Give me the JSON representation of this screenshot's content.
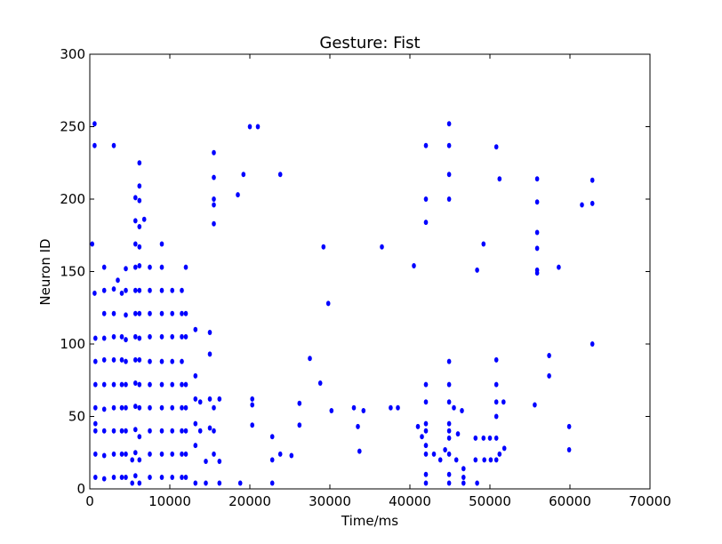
{
  "chart_data": {
    "type": "scatter",
    "title": "Gesture: Fist",
    "xlabel": "Time/ms",
    "ylabel": "Neuron ID",
    "xlim": [
      0,
      70000
    ],
    "ylim": [
      0,
      300
    ],
    "xticks": [
      0,
      10000,
      20000,
      30000,
      40000,
      50000,
      60000,
      70000
    ],
    "yticks": [
      0,
      50,
      100,
      150,
      200,
      250,
      300
    ],
    "xtick_labels": [
      "0",
      "10000",
      "20000",
      "30000",
      "40000",
      "50000",
      "60000",
      "70000"
    ],
    "ytick_labels": [
      "0",
      "50",
      "100",
      "150",
      "200",
      "250",
      "300"
    ],
    "grid": false,
    "marker_color": "#0000ff",
    "series": [
      {
        "points": [
          [
            600,
            252
          ],
          [
            600,
            237
          ],
          [
            300,
            169
          ],
          [
            600,
            135
          ],
          [
            700,
            104
          ],
          [
            700,
            88
          ],
          [
            700,
            72
          ],
          [
            700,
            56
          ],
          [
            700,
            45
          ],
          [
            700,
            40
          ],
          [
            700,
            24
          ],
          [
            700,
            8
          ],
          [
            1800,
            153
          ],
          [
            1800,
            137
          ],
          [
            1800,
            121
          ],
          [
            1800,
            104
          ],
          [
            1800,
            89
          ],
          [
            1800,
            72
          ],
          [
            1800,
            55
          ],
          [
            1800,
            40
          ],
          [
            1800,
            23
          ],
          [
            1800,
            7
          ],
          [
            3000,
            237
          ],
          [
            3000,
            138
          ],
          [
            3000,
            121
          ],
          [
            3000,
            105
          ],
          [
            3000,
            89
          ],
          [
            3000,
            72
          ],
          [
            3000,
            56
          ],
          [
            3000,
            40
          ],
          [
            3000,
            24
          ],
          [
            3000,
            8
          ],
          [
            3500,
            144
          ],
          [
            4000,
            135
          ],
          [
            4000,
            105
          ],
          [
            4000,
            89
          ],
          [
            4000,
            72
          ],
          [
            4000,
            56
          ],
          [
            4000,
            40
          ],
          [
            4000,
            24
          ],
          [
            4000,
            8
          ],
          [
            4500,
            152
          ],
          [
            4500,
            137
          ],
          [
            4500,
            120
          ],
          [
            4500,
            103
          ],
          [
            4500,
            88
          ],
          [
            4500,
            72
          ],
          [
            4500,
            56
          ],
          [
            4500,
            40
          ],
          [
            4500,
            24
          ],
          [
            4500,
            8
          ],
          [
            5300,
            20
          ],
          [
            5300,
            4
          ],
          [
            5700,
            201
          ],
          [
            5700,
            185
          ],
          [
            5700,
            169
          ],
          [
            5700,
            153
          ],
          [
            5700,
            137
          ],
          [
            5700,
            121
          ],
          [
            5700,
            105
          ],
          [
            5700,
            89
          ],
          [
            5700,
            73
          ],
          [
            5700,
            57
          ],
          [
            5700,
            41
          ],
          [
            5700,
            25
          ],
          [
            5700,
            9
          ],
          [
            6200,
            225
          ],
          [
            6200,
            209
          ],
          [
            6200,
            199
          ],
          [
            6200,
            181
          ],
          [
            6200,
            167
          ],
          [
            6200,
            154
          ],
          [
            6200,
            137
          ],
          [
            6200,
            121
          ],
          [
            6200,
            104
          ],
          [
            6200,
            89
          ],
          [
            6200,
            72
          ],
          [
            6200,
            56
          ],
          [
            6200,
            36
          ],
          [
            6200,
            20
          ],
          [
            6200,
            4
          ],
          [
            6800,
            186
          ],
          [
            7500,
            153
          ],
          [
            7500,
            137
          ],
          [
            7500,
            121
          ],
          [
            7500,
            105
          ],
          [
            7500,
            88
          ],
          [
            7500,
            72
          ],
          [
            7500,
            56
          ],
          [
            7500,
            40
          ],
          [
            7500,
            24
          ],
          [
            7500,
            8
          ],
          [
            9000,
            169
          ],
          [
            9000,
            153
          ],
          [
            9000,
            137
          ],
          [
            9000,
            121
          ],
          [
            9000,
            105
          ],
          [
            9000,
            88
          ],
          [
            9000,
            72
          ],
          [
            9000,
            56
          ],
          [
            9000,
            40
          ],
          [
            9000,
            24
          ],
          [
            9000,
            8
          ],
          [
            10300,
            137
          ],
          [
            10300,
            121
          ],
          [
            10300,
            105
          ],
          [
            10300,
            88
          ],
          [
            10300,
            72
          ],
          [
            10300,
            56
          ],
          [
            10300,
            40
          ],
          [
            10300,
            24
          ],
          [
            10300,
            8
          ],
          [
            11500,
            137
          ],
          [
            11500,
            121
          ],
          [
            11500,
            105
          ],
          [
            11500,
            88
          ],
          [
            11500,
            72
          ],
          [
            11500,
            56
          ],
          [
            11500,
            40
          ],
          [
            11500,
            24
          ],
          [
            11500,
            8
          ],
          [
            12000,
            153
          ],
          [
            12000,
            121
          ],
          [
            12000,
            105
          ],
          [
            12000,
            72
          ],
          [
            12000,
            56
          ],
          [
            12000,
            40
          ],
          [
            12000,
            24
          ],
          [
            12000,
            8
          ],
          [
            13200,
            110
          ],
          [
            13200,
            78
          ],
          [
            13200,
            62
          ],
          [
            13200,
            45
          ],
          [
            13200,
            30
          ],
          [
            13200,
            4
          ],
          [
            13800,
            60
          ],
          [
            13800,
            40
          ],
          [
            14500,
            19
          ],
          [
            14500,
            4
          ],
          [
            15000,
            108
          ],
          [
            15000,
            93
          ],
          [
            15000,
            62
          ],
          [
            15000,
            42
          ],
          [
            15500,
            232
          ],
          [
            15500,
            215
          ],
          [
            15500,
            200
          ],
          [
            15500,
            196
          ],
          [
            15500,
            183
          ],
          [
            15500,
            56
          ],
          [
            15500,
            40
          ],
          [
            15500,
            24
          ],
          [
            16200,
            62
          ],
          [
            16200,
            19
          ],
          [
            16200,
            4
          ],
          [
            18500,
            203
          ],
          [
            18800,
            4
          ],
          [
            19200,
            217
          ],
          [
            20000,
            250
          ],
          [
            20300,
            62
          ],
          [
            20300,
            58
          ],
          [
            20300,
            44
          ],
          [
            21000,
            250
          ],
          [
            22800,
            36
          ],
          [
            22800,
            20
          ],
          [
            22800,
            4
          ],
          [
            23800,
            217
          ],
          [
            23800,
            24
          ],
          [
            25200,
            23
          ],
          [
            26200,
            59
          ],
          [
            26200,
            44
          ],
          [
            27500,
            90
          ],
          [
            28800,
            73
          ],
          [
            29200,
            167
          ],
          [
            29800,
            128
          ],
          [
            30200,
            54
          ],
          [
            33000,
            56
          ],
          [
            33500,
            43
          ],
          [
            33700,
            26
          ],
          [
            34200,
            54
          ],
          [
            36500,
            167
          ],
          [
            37600,
            56
          ],
          [
            38500,
            56
          ],
          [
            40500,
            154
          ],
          [
            41000,
            43
          ],
          [
            41500,
            36
          ],
          [
            42000,
            237
          ],
          [
            42000,
            200
          ],
          [
            42000,
            184
          ],
          [
            42000,
            72
          ],
          [
            42000,
            60
          ],
          [
            42000,
            45
          ],
          [
            42000,
            40
          ],
          [
            42000,
            30
          ],
          [
            42000,
            24
          ],
          [
            42000,
            10
          ],
          [
            42000,
            4
          ],
          [
            43000,
            24
          ],
          [
            43800,
            20
          ],
          [
            44400,
            27
          ],
          [
            44900,
            252
          ],
          [
            44900,
            237
          ],
          [
            44900,
            217
          ],
          [
            44900,
            200
          ],
          [
            44900,
            88
          ],
          [
            44900,
            72
          ],
          [
            44900,
            60
          ],
          [
            44900,
            45
          ],
          [
            44900,
            40
          ],
          [
            44900,
            35
          ],
          [
            44900,
            24
          ],
          [
            44900,
            10
          ],
          [
            44900,
            4
          ],
          [
            45500,
            56
          ],
          [
            45800,
            20
          ],
          [
            46000,
            38
          ],
          [
            46500,
            54
          ],
          [
            46700,
            14
          ],
          [
            46700,
            8
          ],
          [
            46700,
            4
          ],
          [
            48200,
            35
          ],
          [
            48200,
            20
          ],
          [
            48400,
            151
          ],
          [
            48400,
            4
          ],
          [
            49200,
            169
          ],
          [
            49200,
            35
          ],
          [
            49300,
            20
          ],
          [
            50000,
            35
          ],
          [
            50100,
            20
          ],
          [
            50800,
            236
          ],
          [
            50800,
            89
          ],
          [
            50800,
            72
          ],
          [
            50800,
            60
          ],
          [
            50800,
            50
          ],
          [
            50800,
            35
          ],
          [
            50800,
            20
          ],
          [
            51200,
            214
          ],
          [
            51200,
            24
          ],
          [
            51700,
            60
          ],
          [
            51800,
            28
          ],
          [
            55600,
            58
          ],
          [
            55900,
            214
          ],
          [
            55900,
            198
          ],
          [
            55900,
            177
          ],
          [
            55900,
            166
          ],
          [
            55900,
            151
          ],
          [
            55900,
            149
          ],
          [
            57400,
            92
          ],
          [
            57400,
            78
          ],
          [
            58600,
            153
          ],
          [
            59900,
            43
          ],
          [
            59900,
            27
          ],
          [
            61500,
            196
          ],
          [
            62800,
            213
          ],
          [
            62800,
            197
          ],
          [
            62800,
            100
          ]
        ]
      }
    ]
  }
}
